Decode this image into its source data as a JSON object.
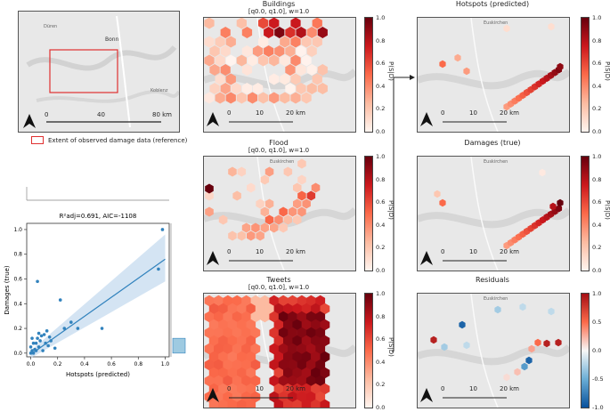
{
  "overview": {
    "places": [
      "Düren",
      "Bonn",
      "Koblenz"
    ],
    "scale": [
      "0",
      "40",
      "80 km"
    ],
    "legend": "Extent of observed damage data (reference)"
  },
  "panels": {
    "buildings": {
      "title": "Buildings",
      "subtitle": "[q0.0, q1.0], w=1.0"
    },
    "flood": {
      "title": "Flood",
      "subtitle": "[q0.0, q1.0], w=1.0"
    },
    "tweets": {
      "title": "Tweets",
      "subtitle": "[q0.0, q1.0], w=1.0"
    },
    "hotspots": {
      "title": "Hotspots (predicted)"
    },
    "damages": {
      "title": "Damages (true)"
    },
    "residuals": {
      "title": "Residuals"
    }
  },
  "map_scale": [
    "0",
    "10",
    "20 km"
  ],
  "town_label": "Euskirchen",
  "colorbar": {
    "label": "P(S|D)",
    "ticks": [
      "1.0",
      "0.8",
      "0.6",
      "0.4",
      "0.2",
      "0.0"
    ],
    "div_ticks": [
      "1.0",
      "0.5",
      "0.0",
      "-0.5",
      "-1.0"
    ]
  },
  "colors": {
    "red_dark": "#67000d",
    "red_mid": "#fb6a4a",
    "red_light": "#fee0d2",
    "blue": "#3182bd",
    "ci": "#c6dbef"
  },
  "chart_data": {
    "type": "scatter",
    "title": "R²adj=0.691, AIC=-1108",
    "xlabel": "Hotspots (predicted)",
    "ylabel": "Damages (true)",
    "xlim": [
      -0.03,
      1.03
    ],
    "ylim": [
      -0.03,
      1.05
    ],
    "xticks": [
      "0.0",
      "0.2",
      "0.4",
      "0.6",
      "0.8",
      "1.0"
    ],
    "yticks": [
      "0.0",
      "0.2",
      "0.4",
      "0.6",
      "0.8",
      "1.0"
    ],
    "points": [
      [
        0.0,
        0.0
      ],
      [
        0.01,
        0.02
      ],
      [
        0.02,
        0.0
      ],
      [
        0.0,
        0.05
      ],
      [
        0.03,
        0.03
      ],
      [
        0.04,
        0.08
      ],
      [
        0.05,
        0.12
      ],
      [
        0.06,
        0.05
      ],
      [
        0.07,
        0.1
      ],
      [
        0.08,
        0.14
      ],
      [
        0.09,
        0.02
      ],
      [
        0.1,
        0.15
      ],
      [
        0.11,
        0.08
      ],
      [
        0.12,
        0.18
      ],
      [
        0.14,
        0.13
      ],
      [
        0.15,
        0.1
      ],
      [
        0.05,
        0.58
      ],
      [
        0.22,
        0.43
      ],
      [
        0.25,
        0.2
      ],
      [
        0.3,
        0.25
      ],
      [
        0.35,
        0.2
      ],
      [
        0.53,
        0.2
      ],
      [
        0.95,
        0.68
      ],
      [
        0.98,
        1.0
      ],
      [
        0.02,
        0.08
      ],
      [
        0.04,
        0.02
      ],
      [
        0.06,
        0.16
      ],
      [
        0.01,
        0.12
      ],
      [
        0.13,
        0.06
      ],
      [
        0.18,
        0.04
      ]
    ],
    "fit": {
      "x": [
        0.0,
        1.0
      ],
      "y": [
        -0.01,
        0.76
      ],
      "ci_low": [
        -0.04,
        0.58
      ],
      "ci_high": [
        0.02,
        0.96
      ]
    }
  }
}
